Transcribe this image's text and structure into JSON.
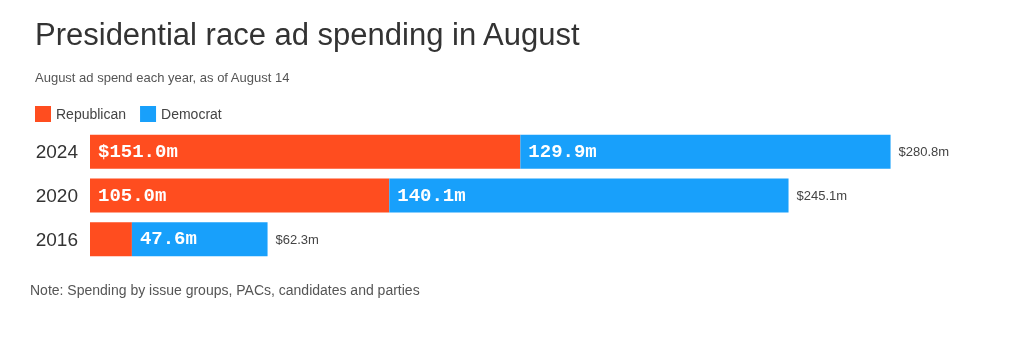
{
  "chart_data": {
    "type": "bar",
    "orientation": "horizontal",
    "stacked": true,
    "title": "Presidential race ad spending in August",
    "subtitle": "August ad spend each year, as of August 14",
    "categories": [
      "2024",
      "2020",
      "2016"
    ],
    "series": [
      {
        "name": "Republican",
        "color": "#ff4d1f",
        "values": [
          151.0,
          105.0,
          14.7
        ],
        "value_labels": [
          "$151.0m",
          "105.0m",
          null
        ]
      },
      {
        "name": "Democrat",
        "color": "#18a0fb",
        "values": [
          129.9,
          140.1,
          47.6
        ],
        "value_labels": [
          "129.9m",
          "140.1m",
          "47.6m"
        ]
      }
    ],
    "totals": [
      "$280.8m",
      "$245.1m",
      "$62.3m"
    ],
    "legend": "top left",
    "annotations": [
      "Note: Spending by issue groups, PACs, candidates and parties"
    ]
  }
}
